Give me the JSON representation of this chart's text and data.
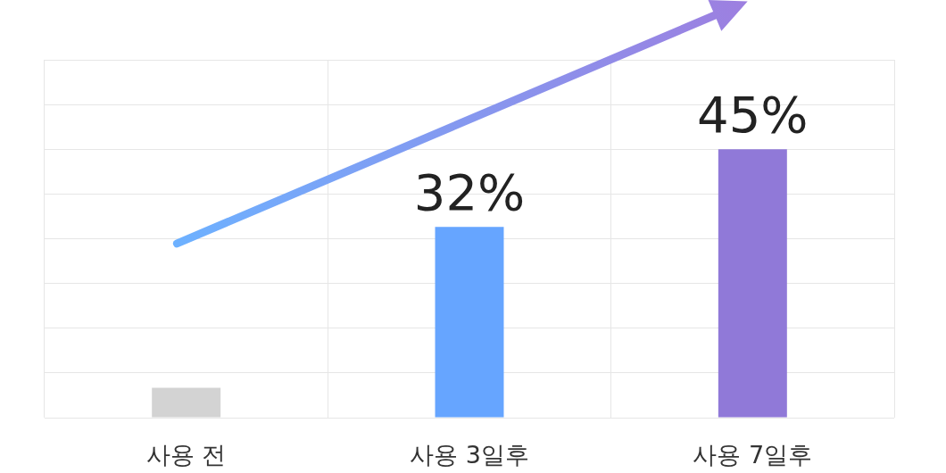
{
  "chart_data": {
    "type": "bar",
    "categories": [
      "사용 전",
      "사용 3일후",
      "사용 7일후"
    ],
    "values": [
      5,
      32,
      45
    ],
    "colors": [
      "#d3d3d3",
      "#66a5ff",
      "#9079d8"
    ],
    "value_labels": [
      null,
      "32%",
      "45%"
    ],
    "ylim": [
      0,
      60
    ],
    "yticks": [
      {
        "value": 0,
        "label": null
      },
      {
        "value": 7.5,
        "label": null
      },
      {
        "value": 15,
        "label": null
      },
      {
        "value": 22.5,
        "label": null
      },
      {
        "value": 30,
        "label": null
      },
      {
        "value": 37.5,
        "label": null
      },
      {
        "value": 45,
        "label": null
      },
      {
        "value": 52.5,
        "label": null
      },
      {
        "value": 60,
        "label": null
      }
    ],
    "grid": true,
    "tick_labels": "x"
  }
}
